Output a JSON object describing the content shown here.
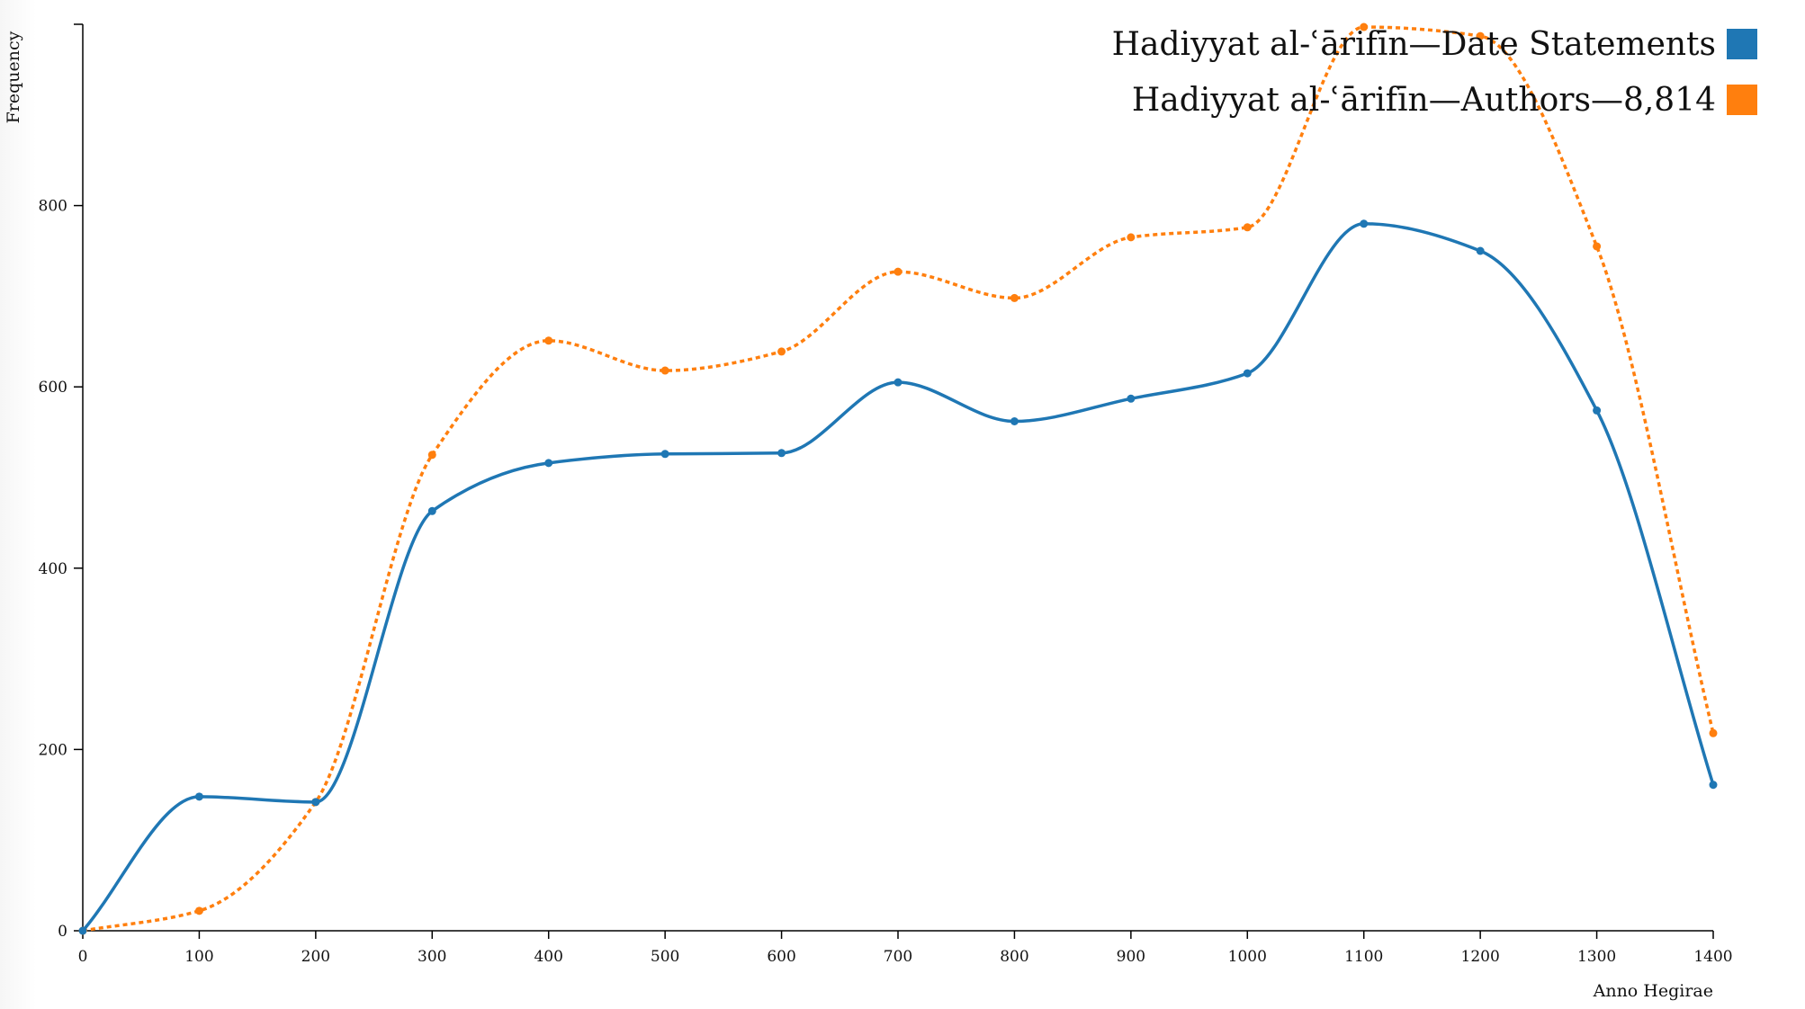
{
  "chart_data": {
    "type": "line",
    "title": "",
    "xlabel": "Anno Hegirae",
    "ylabel": "Frequency",
    "xlim": [
      0,
      1400
    ],
    "ylim": [
      0,
      1000
    ],
    "x": [
      0,
      100,
      200,
      300,
      400,
      500,
      600,
      700,
      800,
      900,
      1000,
      1100,
      1200,
      1300,
      1400
    ],
    "x_ticks": [
      "0",
      "100",
      "200",
      "300",
      "400",
      "500",
      "600",
      "700",
      "800",
      "900",
      "1000",
      "1100",
      "1200",
      "1300",
      "1400"
    ],
    "y_ticks": [
      "0",
      "200",
      "400",
      "600",
      "800"
    ],
    "y_tick_values": [
      0,
      200,
      400,
      600,
      800
    ],
    "grid": false,
    "legend_position": "top-right",
    "series": [
      {
        "name": "Hadiyyat al-ʿārifīn—Date Statements",
        "color": "#1f77b4",
        "line_style": "solid",
        "values": [
          0,
          148,
          142,
          463,
          516,
          526,
          527,
          605,
          562,
          587,
          615,
          780,
          750,
          574,
          161
        ]
      },
      {
        "name": "Hadiyyat al-ʿārifīn—Authors—8,814",
        "color": "#ff7f0e",
        "line_style": "dotted",
        "values": [
          0,
          22,
          142,
          525,
          651,
          618,
          639,
          727,
          698,
          765,
          776,
          997,
          987,
          755,
          218
        ]
      }
    ]
  }
}
